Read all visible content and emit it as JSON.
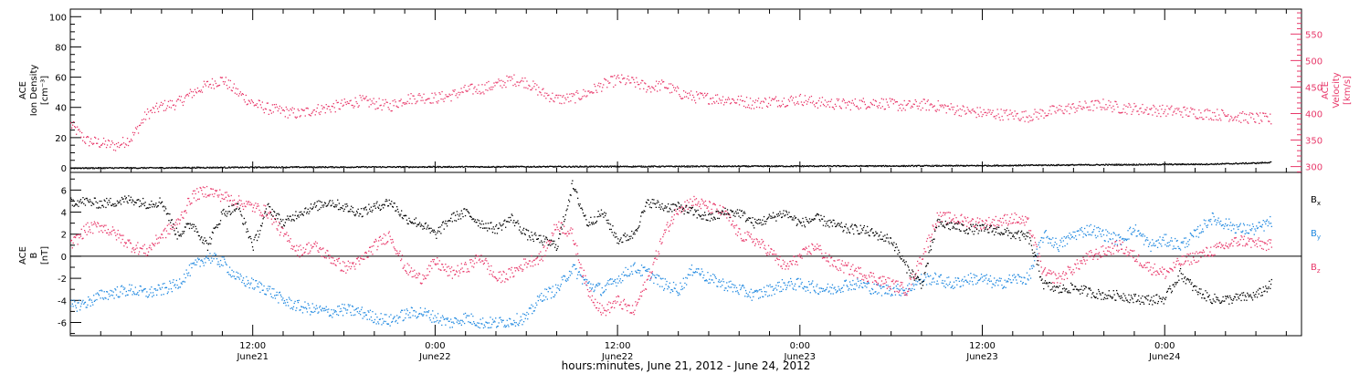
{
  "chart_data": [
    {
      "type": "scatter",
      "panel": "top",
      "ylabel_left": [
        "ACE",
        "Ion Density",
        "[cm⁻³]"
      ],
      "ylabel_right": [
        "ACE",
        "Velocity",
        "[km/s]"
      ],
      "ylim_left": [
        -3,
        105
      ],
      "yticks_left": [
        0,
        20,
        40,
        60,
        80,
        100
      ],
      "ylim_right": [
        289,
        597
      ],
      "yticks_right": [
        300,
        350,
        400,
        450,
        500,
        550
      ],
      "xlim_hours": [
        0,
        81
      ],
      "series": [
        {
          "name": "",
          "color": "#e8386a",
          "axis": "right",
          "x_hours": [
            0,
            1,
            2,
            3,
            4,
            5,
            6,
            7,
            8,
            9,
            10,
            11,
            12,
            13,
            14,
            15,
            16,
            17,
            18,
            19,
            20,
            21,
            22,
            23,
            24,
            25,
            26,
            27,
            28,
            29,
            30,
            31,
            32,
            33,
            34,
            35,
            36,
            37,
            38,
            39,
            40,
            41,
            42,
            43,
            44,
            45,
            46,
            47,
            48,
            49,
            50,
            51,
            52,
            53,
            54,
            55,
            56,
            57,
            58,
            59,
            60,
            61,
            62,
            63,
            64,
            65,
            66,
            67,
            68,
            69,
            70,
            71,
            72,
            73,
            74,
            75,
            76,
            77,
            78,
            79
          ],
          "values": [
            380,
            350,
            345,
            340,
            355,
            400,
            415,
            420,
            440,
            455,
            465,
            440,
            420,
            410,
            405,
            400,
            408,
            412,
            418,
            425,
            420,
            415,
            428,
            432,
            430,
            435,
            445,
            448,
            455,
            465,
            460,
            440,
            428,
            430,
            440,
            455,
            465,
            460,
            450,
            455,
            440,
            432,
            430,
            428,
            425,
            420,
            424,
            425,
            428,
            422,
            420,
            418,
            420,
            422,
            418,
            415,
            418,
            415,
            410,
            405,
            402,
            400,
            398,
            396,
            402,
            408,
            412,
            415,
            418,
            412,
            410,
            408,
            406,
            405,
            402,
            400,
            398,
            394,
            392,
            390
          ]
        },
        {
          "name": "",
          "color": "#000000",
          "axis": "left",
          "x_hours": [
            0,
            5,
            10,
            15,
            20,
            25,
            30,
            35,
            40,
            45,
            50,
            55,
            60,
            65,
            70,
            75,
            78,
            79
          ],
          "values": [
            0.2,
            0.3,
            0.6,
            0.8,
            0.9,
            1.0,
            1.1,
            1.2,
            1.3,
            1.4,
            1.5,
            1.6,
            1.8,
            2.2,
            2.5,
            2.8,
            3.5,
            4.0
          ]
        }
      ]
    },
    {
      "type": "scatter",
      "panel": "bottom",
      "ylabel": [
        "ACE",
        "B",
        "[nT]"
      ],
      "ylim": [
        -7.2,
        7.6
      ],
      "yticks": [
        -6,
        -4,
        -2,
        0,
        2,
        4,
        6
      ],
      "zero_line": true,
      "xlim_hours": [
        0,
        81
      ],
      "legend": {
        "position": "right",
        "entries": [
          {
            "base": "B",
            "sub": "x",
            "color": "#000000"
          },
          {
            "base": "B",
            "sub": "y",
            "color": "#1f88e0"
          },
          {
            "base": "B",
            "sub": "z",
            "color": "#e8386a"
          }
        ]
      },
      "series": [
        {
          "name": "Bx",
          "color": "#000000",
          "x_hours": [
            0,
            1,
            2,
            3,
            4,
            5,
            6,
            7,
            8,
            9,
            10,
            11,
            12,
            13,
            14,
            15,
            16,
            17,
            18,
            19,
            20,
            21,
            22,
            23,
            24,
            25,
            26,
            27,
            28,
            29,
            30,
            31,
            32,
            33,
            34,
            35,
            36,
            37,
            38,
            39,
            40,
            41,
            42,
            43,
            44,
            45,
            46,
            47,
            48,
            49,
            50,
            51,
            52,
            53,
            54,
            55,
            56,
            57,
            58,
            59,
            60,
            61,
            62,
            63,
            64,
            65,
            66,
            67,
            68,
            69,
            70,
            71,
            72,
            73,
            74,
            75,
            76,
            77,
            78,
            79
          ],
          "values": [
            5.0,
            5.0,
            4.8,
            5.0,
            5.2,
            4.8,
            5.0,
            2.0,
            3.0,
            1.0,
            4.0,
            4.5,
            1.0,
            4.5,
            3.0,
            4.0,
            4.5,
            5.0,
            4.5,
            4.0,
            4.5,
            5.0,
            3.5,
            3.0,
            2.0,
            3.5,
            4.0,
            3.0,
            2.5,
            3.5,
            2.0,
            1.5,
            1.0,
            6.5,
            3.0,
            4.0,
            1.5,
            2.0,
            5.0,
            4.5,
            4.5,
            4.0,
            3.5,
            4.0,
            4.0,
            3.0,
            3.5,
            4.0,
            3.0,
            3.5,
            3.0,
            2.5,
            2.5,
            2.0,
            1.5,
            -1.0,
            -2.5,
            3.0,
            2.8,
            2.5,
            2.5,
            2.4,
            2.0,
            1.8,
            -2.5,
            -3.0,
            -2.8,
            -3.2,
            -3.5,
            -3.5,
            -3.8,
            -3.9,
            -3.8,
            -1.5,
            -3.0,
            -3.8,
            -3.9,
            -3.7,
            -3.5,
            -2.5
          ]
        },
        {
          "name": "By",
          "color": "#1f88e0",
          "x_hours": [
            0,
            1,
            2,
            3,
            4,
            5,
            6,
            7,
            8,
            9,
            10,
            11,
            12,
            13,
            14,
            15,
            16,
            17,
            18,
            19,
            20,
            21,
            22,
            23,
            24,
            25,
            26,
            27,
            28,
            29,
            30,
            31,
            32,
            33,
            34,
            35,
            36,
            37,
            38,
            39,
            40,
            41,
            42,
            43,
            44,
            45,
            46,
            47,
            48,
            49,
            50,
            51,
            52,
            53,
            54,
            55,
            56,
            57,
            58,
            59,
            60,
            61,
            62,
            63,
            64,
            65,
            66,
            67,
            68,
            69,
            70,
            71,
            72,
            73,
            74,
            75,
            76,
            77,
            78,
            79
          ],
          "values": [
            -4.5,
            -4.2,
            -3.5,
            -3.2,
            -3.0,
            -3.3,
            -3.0,
            -2.5,
            -1.0,
            0.0,
            -0.5,
            -2.0,
            -2.5,
            -3.0,
            -4.0,
            -4.5,
            -4.8,
            -5.0,
            -4.8,
            -5.0,
            -5.5,
            -5.8,
            -5.2,
            -5.0,
            -5.5,
            -6.0,
            -5.5,
            -6.0,
            -6.0,
            -5.8,
            -5.5,
            -3.5,
            -3.0,
            -1.0,
            -2.5,
            -3.0,
            -2.0,
            -1.0,
            -1.5,
            -2.5,
            -3.0,
            -1.0,
            -2.0,
            -2.5,
            -3.0,
            -3.5,
            -3.0,
            -2.5,
            -2.5,
            -2.8,
            -3.0,
            -2.5,
            -2.5,
            -3.0,
            -3.0,
            -3.0,
            -2.0,
            -2.0,
            -2.5,
            -2.0,
            -2.0,
            -2.5,
            -2.0,
            -2.0,
            2.0,
            1.0,
            2.0,
            2.5,
            2.0,
            1.5,
            2.5,
            1.0,
            1.5,
            1.0,
            2.0,
            3.5,
            3.0,
            2.5,
            2.5,
            3.2
          ]
        },
        {
          "name": "Bz",
          "color": "#e8386a",
          "x_hours": [
            0,
            1,
            2,
            3,
            4,
            5,
            6,
            7,
            8,
            9,
            10,
            11,
            12,
            13,
            14,
            15,
            16,
            17,
            18,
            19,
            20,
            21,
            22,
            23,
            24,
            25,
            26,
            27,
            28,
            29,
            30,
            31,
            32,
            33,
            34,
            35,
            36,
            37,
            38,
            39,
            40,
            41,
            42,
            43,
            44,
            45,
            46,
            47,
            48,
            49,
            50,
            51,
            52,
            53,
            54,
            55,
            56,
            57,
            58,
            59,
            60,
            61,
            62,
            63,
            64,
            65,
            66,
            67,
            68,
            69,
            70,
            71,
            72,
            73,
            74,
            75,
            76,
            77,
            78,
            79
          ],
          "values": [
            1.0,
            2.5,
            2.8,
            2.0,
            1.0,
            0.5,
            2.0,
            3.0,
            5.5,
            6.0,
            5.5,
            5.0,
            4.5,
            4.0,
            2.0,
            0.5,
            1.0,
            0.0,
            -1.0,
            -0.5,
            1.0,
            2.0,
            -1.0,
            -2.0,
            -0.5,
            -1.5,
            -1.0,
            0.0,
            -2.0,
            -1.5,
            -0.5,
            0.0,
            3.0,
            2.0,
            -3.0,
            -5.0,
            -4.0,
            -5.0,
            -2.0,
            2.0,
            4.5,
            5.0,
            4.5,
            4.0,
            2.0,
            1.5,
            0.5,
            -1.0,
            0.0,
            1.0,
            -0.5,
            -1.0,
            -1.5,
            -2.0,
            -2.5,
            -3.0,
            0.0,
            3.5,
            3.5,
            3.2,
            3.0,
            3.2,
            3.5,
            3.0,
            -1.5,
            -2.0,
            -1.0,
            0.0,
            0.5,
            1.0,
            0.0,
            -1.0,
            -1.5,
            -0.5,
            0.0,
            0.5,
            1.0,
            1.5,
            1.2,
            1.0
          ]
        }
      ]
    }
  ],
  "x_axis": {
    "ticks": [
      {
        "hours": 12,
        "time": "12:00",
        "date": "June21"
      },
      {
        "hours": 24,
        "time": "0:00",
        "date": "June22"
      },
      {
        "hours": 36,
        "time": "12:00",
        "date": "June22"
      },
      {
        "hours": 48,
        "time": "0:00",
        "date": "June23"
      },
      {
        "hours": 60,
        "time": "12:00",
        "date": "June23"
      },
      {
        "hours": 72,
        "time": "0:00",
        "date": "June24"
      }
    ],
    "title": "hours:minutes, June 21, 2012 - June 24, 2012"
  }
}
